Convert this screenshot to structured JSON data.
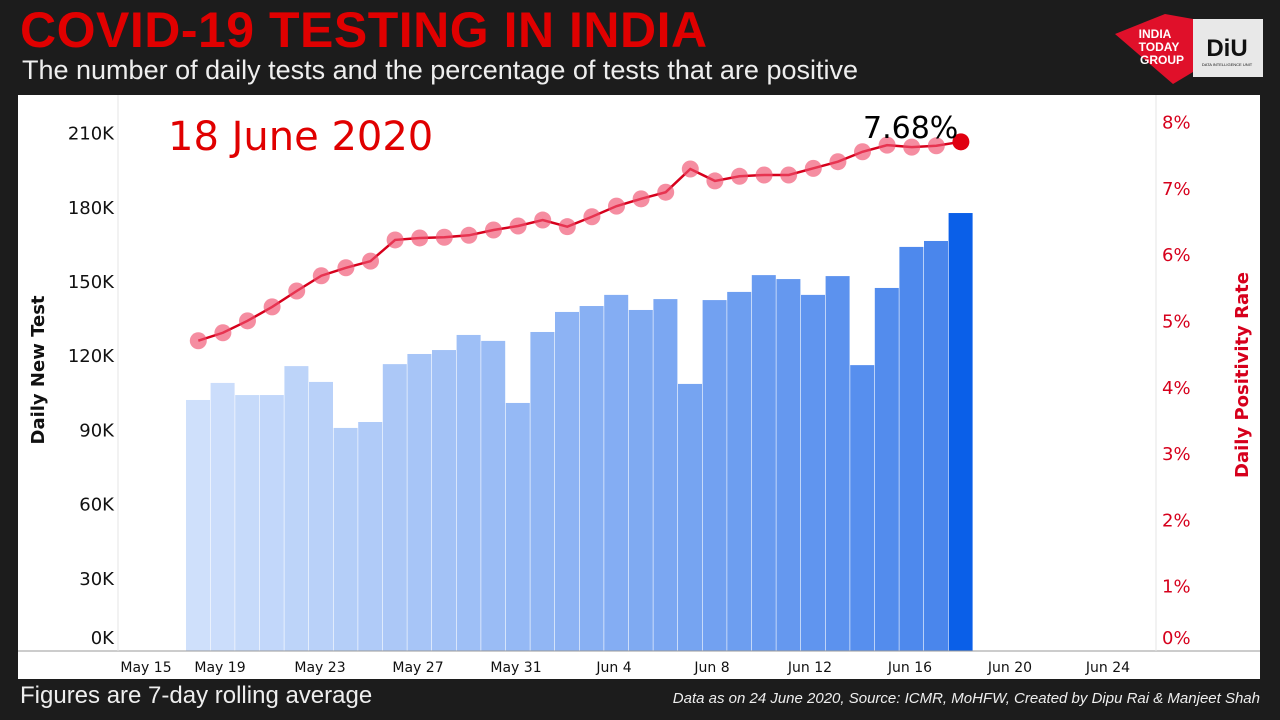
{
  "header": {
    "title": "COVID-19 TESTING IN INDIA",
    "subtitle": "The number of daily tests and the percentage of tests that are positive"
  },
  "logo": {
    "left_text": "INDIA TODAY GROUP",
    "right_text": "DiU",
    "right_subtext": "DATA INTELLIGENCE UNIT"
  },
  "footer": {
    "note": "Figures are 7-day rolling average",
    "source": "Data as on 24 June 2020, Source: ICMR, MoHFW, Created by Dipu Rai & Manjeet Shah"
  },
  "chart_data": {
    "type": "bar+line",
    "date_label": "18 June 2020",
    "highlight_label": "7.68%",
    "x_ticks": [
      "May 15",
      "May 19",
      "May 23",
      "May 27",
      "May 31",
      "Jun 4",
      "Jun 8",
      "Jun 12",
      "Jun 16",
      "Jun 20",
      "Jun 24"
    ],
    "x_start": "2020-05-18",
    "y_left": {
      "label": "Daily New Test",
      "ticks": [
        "0K",
        "30K",
        "60K",
        "90K",
        "120K",
        "150K",
        "180K",
        "210K"
      ],
      "range": [
        0,
        210000
      ]
    },
    "y_right": {
      "label": "Daily Positivity Rate",
      "ticks": [
        "0%",
        "1%",
        "2%",
        "3%",
        "4%",
        "5%",
        "6%",
        "7%",
        "8%"
      ],
      "range": [
        0,
        8
      ]
    },
    "dates": [
      "May 18",
      "May 19",
      "May 20",
      "May 21",
      "May 22",
      "May 23",
      "May 24",
      "May 25",
      "May 26",
      "May 27",
      "May 28",
      "May 29",
      "May 30",
      "May 31",
      "Jun 1",
      "Jun 2",
      "Jun 3",
      "Jun 4",
      "Jun 5",
      "Jun 6",
      "Jun 7",
      "Jun 8",
      "Jun 9",
      "Jun 10",
      "Jun 11",
      "Jun 12",
      "Jun 13",
      "Jun 14",
      "Jun 15",
      "Jun 16",
      "Jun 17",
      "Jun 18"
    ],
    "series": [
      {
        "type": "bar",
        "values_k": [
          101.5,
          108.4,
          103.5,
          103.5,
          115.2,
          108.8,
          90.2,
          92.6,
          116,
          120.1,
          121.7,
          127.8,
          125.4,
          100.3,
          129,
          137.1,
          139.5,
          144,
          137.9,
          142.3,
          108,
          141.9,
          145.2,
          152,
          150.4,
          144,
          151.6,
          115.6,
          146.8,
          163.4,
          165.8,
          177.1
        ]
      },
      {
        "type": "line",
        "values_pct": [
          4.68,
          4.8,
          4.98,
          5.19,
          5.43,
          5.66,
          5.78,
          5.88,
          6.2,
          6.23,
          6.24,
          6.27,
          6.35,
          6.41,
          6.5,
          6.4,
          6.55,
          6.71,
          6.82,
          6.92,
          7.27,
          7.09,
          7.16,
          7.18,
          7.18,
          7.28,
          7.38,
          7.53,
          7.63,
          7.6,
          7.62,
          7.68
        ]
      }
    ],
    "colors": {
      "bar_light": "#cfe0fb",
      "bar_dark": "#4a86ec",
      "bar_highlight": "#0a5fe8",
      "line": "#d6001c",
      "marker": "#f0506e",
      "title_red": "#e00000"
    },
    "grid": false
  }
}
